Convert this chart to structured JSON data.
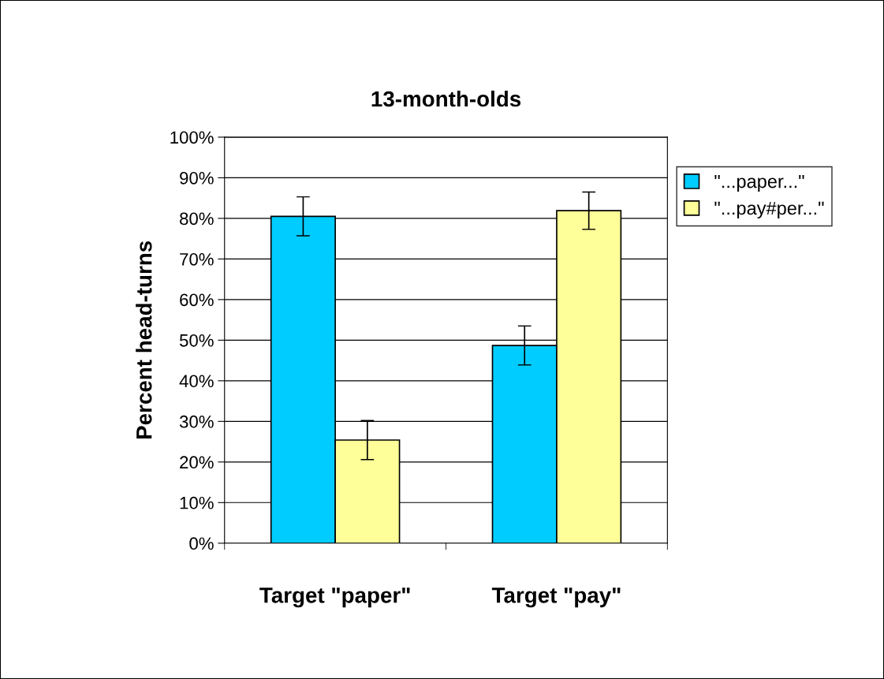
{
  "chart_data": {
    "type": "bar",
    "title": "13-month-olds",
    "ylabel": "Percent head-turns",
    "categories": [
      "Target \"paper\"",
      "Target \"pay\""
    ],
    "series": [
      {
        "name": "\"...paper...\"",
        "color": "#00ccff",
        "values": [
          80.5,
          48.7
        ],
        "errors": [
          4.8,
          4.8
        ]
      },
      {
        "name": "\"...pay#per...\"",
        "color": "#ffff99",
        "values": [
          25.4,
          81.9
        ],
        "errors": [
          4.8,
          4.6
        ]
      }
    ],
    "ylim": [
      0,
      100
    ],
    "yticks": [
      {
        "value": 0,
        "label": "0%"
      },
      {
        "value": 10,
        "label": "10%"
      },
      {
        "value": 20,
        "label": "20%"
      },
      {
        "value": 30,
        "label": "30%"
      },
      {
        "value": 40,
        "label": "40%"
      },
      {
        "value": 50,
        "label": "50%"
      },
      {
        "value": 60,
        "label": "60%"
      },
      {
        "value": 70,
        "label": "70%"
      },
      {
        "value": 80,
        "label": "80%"
      },
      {
        "value": 90,
        "label": "90%"
      },
      {
        "value": 100,
        "label": "100%"
      }
    ],
    "grid": "y",
    "legend": "top right"
  }
}
